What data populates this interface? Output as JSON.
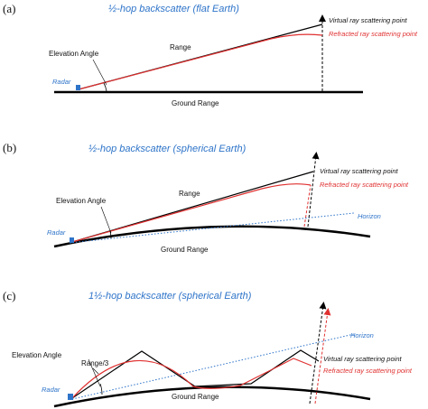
{
  "panel_a": {
    "label": "(a)",
    "title": "½-hop backscatter (flat Earth)",
    "elevation_angle": "Elevation Angle",
    "range": "Range",
    "radar": "Radar",
    "ground_range": "Ground Range",
    "virtual_point": "Virtual ray scattering point",
    "refracted_point": "Refracted ray scattering point"
  },
  "panel_b": {
    "label": "(b)",
    "title": "½-hop backscatter (spherical Earth)",
    "elevation_angle": "Elevation Angle",
    "range": "Range",
    "radar": "Radar",
    "ground_range": "Ground Range",
    "horizon": "Horizon",
    "virtual_point": "Virtual ray scattering point",
    "refracted_point": "Refracted ray scattering point"
  },
  "panel_c": {
    "label": "(c)",
    "title": "1½-hop backscatter (spherical Earth)",
    "elevation_angle": "Elevation Angle",
    "range": "Range/3",
    "radar": "Radar",
    "ground_range": "Ground Range",
    "horizon": "Horizon",
    "virtual_point": "Virtual ray scattering point",
    "refracted_point": "Refracted ray scattering point"
  },
  "colors": {
    "virtual_ray": "#000000",
    "refracted_ray": "#e03030",
    "radar": "#2e74c9",
    "horizon": "#2e74c9",
    "title": "#2e74c9",
    "ground": "#000000"
  }
}
